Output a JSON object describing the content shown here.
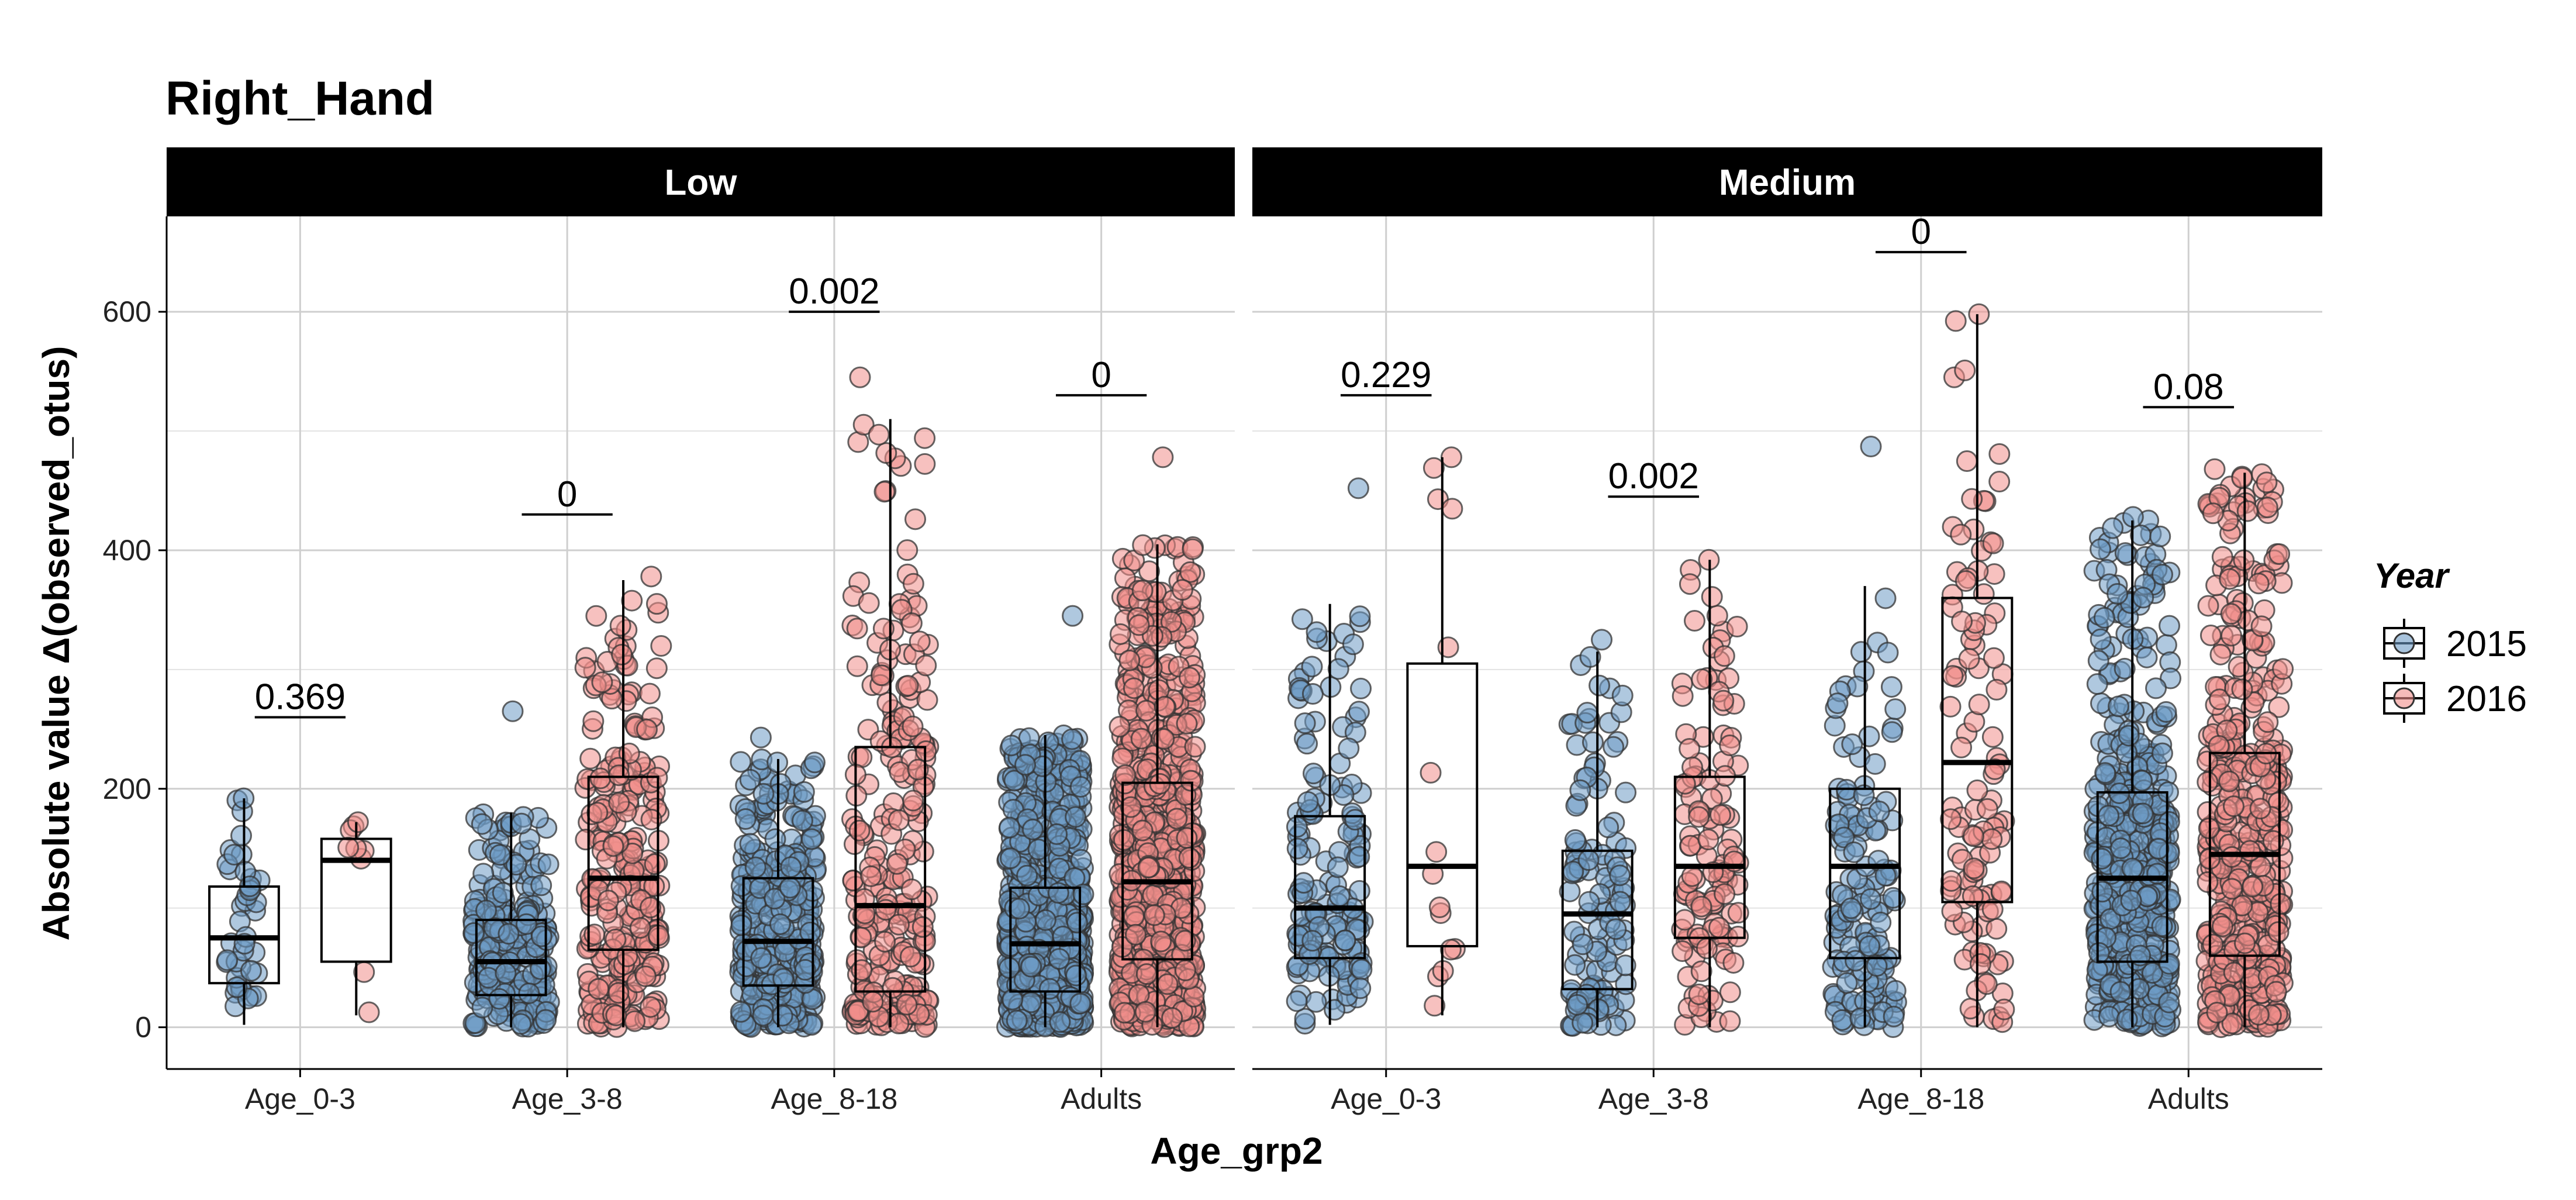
{
  "chart_data": {
    "type": "box",
    "title": "Right_Hand",
    "xlabel": "Age_grp2",
    "ylabel": "Absolute value Δ(observed_otus)",
    "ylim": [
      -35,
      680
    ],
    "yticks": [
      0,
      200,
      400,
      600
    ],
    "categories": [
      "Age_0-3",
      "Age_3-8",
      "Age_8-18",
      "Adults"
    ],
    "legend": {
      "title": "Year",
      "position": "right",
      "entries": [
        {
          "label": "2015",
          "color": "#6e9bc5"
        },
        {
          "label": "2016",
          "color": "#f08e8a"
        }
      ]
    },
    "grid": true,
    "series": [
      {
        "name": "2015",
        "color": "#6e9bc5"
      },
      {
        "name": "2016",
        "color": "#f08e8a"
      }
    ],
    "panels": [
      {
        "name": "Low",
        "groups": [
          {
            "category": "Age_0-3",
            "p_value": "0.369",
            "p_y": 260,
            "boxes": [
              {
                "series": "2015",
                "q1": 37,
                "median": 75,
                "q3": 118,
                "whisker_low": 2,
                "whisker_high": 192,
                "n": 40,
                "max_point": 192
              },
              {
                "series": "2016",
                "q1": 55,
                "median": 140,
                "q3": 158,
                "whisker_low": 10,
                "whisker_high": 172,
                "n": 8,
                "max_point": 172
              }
            ]
          },
          {
            "category": "Age_3-8",
            "p_value": "0",
            "p_y": 430,
            "boxes": [
              {
                "series": "2015",
                "q1": 27,
                "median": 55,
                "q3": 90,
                "whisker_low": 0,
                "whisker_high": 180,
                "n": 260,
                "max_point": 265
              },
              {
                "series": "2016",
                "q1": 65,
                "median": 125,
                "q3": 210,
                "whisker_low": 0,
                "whisker_high": 375,
                "n": 250,
                "max_point": 378
              }
            ]
          },
          {
            "category": "Age_8-18",
            "p_value": "0.002",
            "p_y": 600,
            "boxes": [
              {
                "series": "2015",
                "q1": 35,
                "median": 72,
                "q3": 125,
                "whisker_low": 0,
                "whisker_high": 225,
                "n": 350,
                "max_point": 243
              },
              {
                "series": "2016",
                "q1": 30,
                "median": 102,
                "q3": 235,
                "whisker_low": 0,
                "whisker_high": 510,
                "n": 250,
                "max_point": 545
              }
            ]
          },
          {
            "category": "Adults",
            "p_value": "0",
            "p_y": 530,
            "boxes": [
              {
                "series": "2015",
                "q1": 30,
                "median": 70,
                "q3": 117,
                "whisker_low": 0,
                "whisker_high": 245,
                "n": 900,
                "max_point": 345
              },
              {
                "series": "2016",
                "q1": 57,
                "median": 122,
                "q3": 205,
                "whisker_low": 0,
                "whisker_high": 405,
                "n": 800,
                "max_point": 478
              }
            ]
          }
        ]
      },
      {
        "name": "Medium",
        "groups": [
          {
            "category": "Age_0-3",
            "p_value": "0.229",
            "p_y": 530,
            "boxes": [
              {
                "series": "2015",
                "q1": 58,
                "median": 100,
                "q3": 177,
                "whisker_low": 2,
                "whisker_high": 355,
                "n": 150,
                "max_point": 452
              },
              {
                "series": "2016",
                "q1": 68,
                "median": 135,
                "q3": 305,
                "whisker_low": 10,
                "whisker_high": 478,
                "n": 14,
                "max_point": 478
              }
            ]
          },
          {
            "category": "Age_3-8",
            "p_value": "0.002",
            "p_y": 445,
            "boxes": [
              {
                "series": "2015",
                "q1": 32,
                "median": 95,
                "q3": 148,
                "whisker_low": 0,
                "whisker_high": 315,
                "n": 120,
                "max_point": 325
              },
              {
                "series": "2016",
                "q1": 75,
                "median": 135,
                "q3": 210,
                "whisker_low": 0,
                "whisker_high": 392,
                "n": 120,
                "max_point": 392
              }
            ]
          },
          {
            "category": "Age_8-18",
            "p_value": "0",
            "p_y": 650,
            "boxes": [
              {
                "series": "2015",
                "q1": 58,
                "median": 135,
                "q3": 200,
                "whisker_low": 0,
                "whisker_high": 370,
                "n": 140,
                "max_point": 487
              },
              {
                "series": "2016",
                "q1": 105,
                "median": 222,
                "q3": 360,
                "whisker_low": 0,
                "whisker_high": 598,
                "n": 110,
                "max_point": 598
              }
            ]
          },
          {
            "category": "Adults",
            "p_value": "0.08",
            "p_y": 520,
            "boxes": [
              {
                "series": "2015",
                "q1": 55,
                "median": 125,
                "q3": 197,
                "whisker_low": 0,
                "whisker_high": 425,
                "n": 500,
                "max_point": 428
              },
              {
                "series": "2016",
                "q1": 60,
                "median": 145,
                "q3": 230,
                "whisker_low": 0,
                "whisker_high": 465,
                "n": 450,
                "max_point": 468
              }
            ]
          }
        ]
      }
    ]
  }
}
